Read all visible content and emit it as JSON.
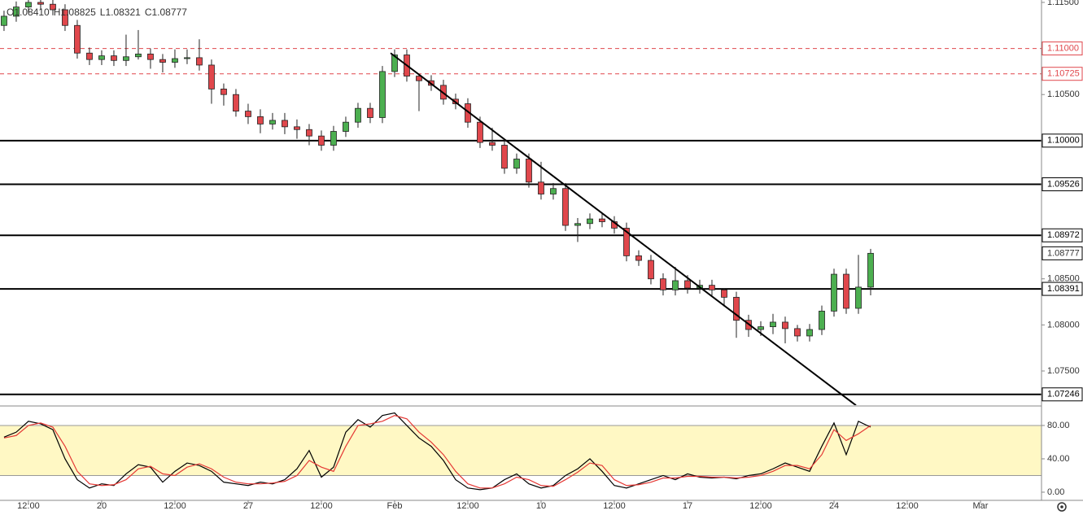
{
  "chart_data": [
    {
      "type": "candlestick",
      "ohlc": [
        "O1.08410",
        "H1.08825",
        "L1.08321",
        "C1.08777"
      ],
      "open": [
        1.1125,
        1.1135,
        1.1145,
        1.115,
        1.1148,
        1.1142,
        1.1125,
        1.1095,
        1.1088,
        1.1092,
        1.1087,
        1.1091,
        1.1094,
        1.1088,
        1.1085,
        1.1089,
        1.109,
        1.1082,
        1.1056,
        1.105,
        1.1032,
        1.1026,
        1.1018,
        1.1022,
        1.1015,
        1.1012,
        1.1005,
        1.0995,
        1.101,
        1.102,
        1.1035,
        1.1025,
        1.1075,
        1.1093,
        1.107,
        1.1065,
        1.106,
        1.1045,
        1.104,
        1.102,
        1.0998,
        1.0995,
        1.097,
        1.098,
        1.0955,
        1.0942,
        1.0948,
        1.0908,
        1.091,
        1.0915,
        1.0912,
        1.0905,
        1.0875,
        1.087,
        1.085,
        1.0838,
        1.0848,
        1.084,
        1.0843,
        1.0838,
        1.083,
        1.0805,
        1.0795,
        1.0798,
        1.0803,
        1.0796,
        1.0788,
        1.0795,
        1.0815,
        1.0855,
        1.0818,
        1.0841
      ],
      "high": [
        1.1141,
        1.1151,
        1.1156,
        1.1156,
        1.1154,
        1.1148,
        1.1131,
        1.1101,
        1.1098,
        1.1098,
        1.1115,
        1.112,
        1.11,
        1.1094,
        1.1099,
        1.1099,
        1.111,
        1.1088,
        1.1062,
        1.1056,
        1.104,
        1.1034,
        1.103,
        1.103,
        1.1023,
        1.1018,
        1.1011,
        1.1016,
        1.1026,
        1.1041,
        1.1041,
        1.1081,
        1.1099,
        1.1099,
        1.1072,
        1.1071,
        1.1066,
        1.1051,
        1.1046,
        1.1026,
        1.1014,
        1.1001,
        1.0986,
        1.0986,
        1.0977,
        1.0954,
        1.0954,
        1.0916,
        1.0921,
        1.0921,
        1.0918,
        1.0911,
        1.0881,
        1.0876,
        1.0856,
        1.0863,
        1.0854,
        1.0849,
        1.0849,
        1.084,
        1.0836,
        1.0811,
        1.0804,
        1.0812,
        1.0809,
        1.08,
        1.0801,
        1.0821,
        1.0861,
        1.0861,
        1.0876,
        1.08825
      ],
      "low": [
        1.1119,
        1.1129,
        1.1139,
        1.1142,
        1.1136,
        1.1119,
        1.1089,
        1.1082,
        1.1082,
        1.1081,
        1.1081,
        1.1088,
        1.1078,
        1.1074,
        1.1079,
        1.1083,
        1.1076,
        1.104,
        1.1038,
        1.1026,
        1.1018,
        1.1008,
        1.1012,
        1.1007,
        1.1002,
        1.0995,
        1.0989,
        1.0989,
        1.1004,
        1.1014,
        1.1019,
        1.1019,
        1.1069,
        1.1064,
        1.1032,
        1.1054,
        1.1039,
        1.1034,
        1.1014,
        1.0992,
        1.0989,
        1.0964,
        1.0964,
        1.0949,
        1.0936,
        1.0936,
        1.0902,
        1.089,
        1.0904,
        1.0906,
        1.0899,
        1.0869,
        1.0864,
        1.0844,
        1.0832,
        1.0832,
        1.0834,
        1.0834,
        1.0832,
        1.082,
        1.0786,
        1.0787,
        1.0788,
        1.079,
        1.078,
        1.0782,
        1.0782,
        1.0789,
        1.0809,
        1.0812,
        1.0812,
        1.08321
      ],
      "close": [
        1.1135,
        1.1145,
        1.115,
        1.1148,
        1.1142,
        1.1125,
        1.1095,
        1.1088,
        1.1092,
        1.1087,
        1.1091,
        1.1094,
        1.1088,
        1.1085,
        1.1089,
        1.109,
        1.1082,
        1.1056,
        1.105,
        1.1032,
        1.1026,
        1.1018,
        1.1022,
        1.1015,
        1.1012,
        1.1005,
        1.0995,
        1.101,
        1.102,
        1.1035,
        1.1025,
        1.1075,
        1.1093,
        1.107,
        1.1065,
        1.106,
        1.1045,
        1.104,
        1.102,
        1.0998,
        1.0995,
        1.097,
        1.098,
        1.0955,
        1.0942,
        1.0948,
        1.0908,
        1.091,
        1.0915,
        1.0912,
        1.0905,
        1.0875,
        1.087,
        1.085,
        1.0838,
        1.0848,
        1.084,
        1.0843,
        1.0838,
        1.083,
        1.0805,
        1.0795,
        1.0798,
        1.0803,
        1.0796,
        1.0788,
        1.0795,
        1.0815,
        1.0855,
        1.0818,
        1.0841,
        1.08777
      ],
      "up_color": "#4caf50",
      "down_color": "#e0474c",
      "last_label": "1.08777",
      "levels": [
        {
          "value": 1.11,
          "label": "1.11000",
          "color": "#e0474c",
          "dashed": true
        },
        {
          "value": 1.10725,
          "label": "1.10725",
          "color": "#e0474c",
          "dashed": true
        },
        {
          "value": 1.1,
          "label": "1.10000",
          "color": "#000000",
          "dashed": false
        },
        {
          "value": 1.09526,
          "label": "1.09526",
          "color": "#000000",
          "dashed": false
        },
        {
          "value": 1.08972,
          "label": "1.08972",
          "color": "#000000",
          "dashed": false
        },
        {
          "value": 1.08391,
          "label": "1.08391",
          "color": "#000000",
          "dashed": false
        },
        {
          "value": 1.07246,
          "label": "1.07246",
          "color": "#000000",
          "dashed": false
        }
      ],
      "trendline": {
        "x": [
          31.67,
          69.8
        ],
        "y": [
          1.1095,
          1.07127
        ]
      },
      "xlim": [
        -0.33,
        85
      ],
      "xticks": [
        {
          "value": 2,
          "label": "12:00"
        },
        {
          "value": 8,
          "label": "20"
        },
        {
          "value": 14,
          "label": "12:00"
        },
        {
          "value": 20,
          "label": "27"
        },
        {
          "value": 26,
          "label": "12:00"
        },
        {
          "value": 32,
          "label": "Feb"
        },
        {
          "value": 38,
          "label": "12:00"
        },
        {
          "value": 44,
          "label": "10"
        },
        {
          "value": 50,
          "label": "12:00"
        },
        {
          "value": 56,
          "label": "17"
        },
        {
          "value": 62,
          "label": "12:00"
        },
        {
          "value": 68,
          "label": "24"
        },
        {
          "value": 74,
          "label": "12:00"
        },
        {
          "value": 80,
          "label": "Mar"
        }
      ],
      "ylim": [
        1.07129,
        1.11526
      ],
      "yticks": [
        {
          "value": 1.115,
          "label": "1.11500"
        },
        {
          "value": 1.105,
          "label": "1.10500"
        },
        {
          "value": 1.085,
          "label": "1.08500"
        },
        {
          "value": 1.08,
          "label": "1.08000"
        },
        {
          "value": 1.075,
          "label": "1.07500"
        }
      ]
    },
    {
      "type": "line",
      "series": [
        {
          "color": "#000000",
          "values": [
            66,
            72,
            85,
            82,
            75,
            40,
            15,
            5,
            10,
            8,
            22,
            33,
            30,
            12,
            25,
            35,
            32,
            25,
            12,
            10,
            8,
            12,
            10,
            15,
            28,
            50,
            18,
            30,
            72,
            87,
            78,
            92,
            95,
            80,
            65,
            55,
            38,
            15,
            5,
            3,
            5,
            15,
            22,
            10,
            5,
            8,
            20,
            28,
            40,
            25,
            8,
            5,
            10,
            15,
            20,
            15,
            22,
            18,
            17,
            18,
            16,
            20,
            22,
            28,
            35,
            30,
            25,
            55,
            83,
            45,
            85,
            78
          ]
        },
        {
          "color": "#e53935",
          "values": [
            65,
            68,
            80,
            83,
            78,
            55,
            25,
            10,
            8,
            9,
            15,
            28,
            31,
            22,
            20,
            30,
            34,
            28,
            18,
            12,
            10,
            10,
            11,
            13,
            20,
            38,
            30,
            25,
            55,
            80,
            82,
            85,
            92,
            88,
            72,
            60,
            45,
            25,
            10,
            5,
            5,
            10,
            18,
            15,
            8,
            7,
            15,
            24,
            35,
            32,
            15,
            8,
            9,
            12,
            17,
            17,
            19,
            19,
            18,
            18,
            17,
            18,
            20,
            25,
            32,
            32,
            28,
            45,
            75,
            62,
            70,
            80
          ]
        }
      ],
      "band": [
        20,
        80
      ],
      "band_color": "#fff8c4",
      "ylim": [
        -9.8,
        102.4
      ],
      "yticks": [
        {
          "value": 80,
          "label": "80.00"
        },
        {
          "value": 40,
          "label": "40.00"
        },
        {
          "value": 0,
          "label": "0.00"
        }
      ]
    }
  ]
}
